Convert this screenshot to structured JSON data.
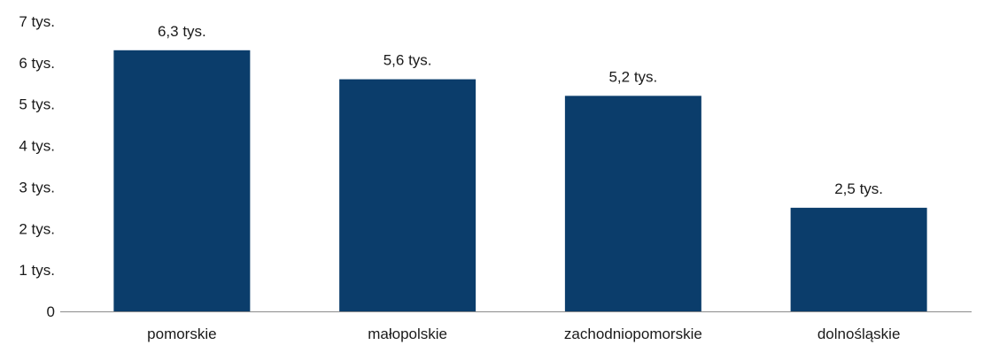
{
  "chart_data": {
    "type": "bar",
    "categories": [
      "pomorskie",
      "małopolskie",
      "zachodniopomorskie",
      "dolnośląskie"
    ],
    "values": [
      6300,
      5600,
      5200,
      2500
    ],
    "data_labels": [
      "6,3 tys.",
      "5,6 tys.",
      "5,2 tys.",
      "2,5 tys."
    ],
    "y_ticks": [
      0,
      1000,
      2000,
      3000,
      4000,
      5000,
      6000,
      7000
    ],
    "y_tick_labels": [
      "0",
      "1 tys.",
      "2 tys.",
      "3 tys.",
      "4 tys.",
      "5 tys.",
      "6 tys.",
      "7 tys."
    ],
    "ylim": [
      0,
      7000
    ],
    "grid": false,
    "legend": "none",
    "bar_color": "#0b3d6b",
    "axis_color": "#8c8c8c",
    "title": "",
    "xlabel": "",
    "ylabel": ""
  }
}
